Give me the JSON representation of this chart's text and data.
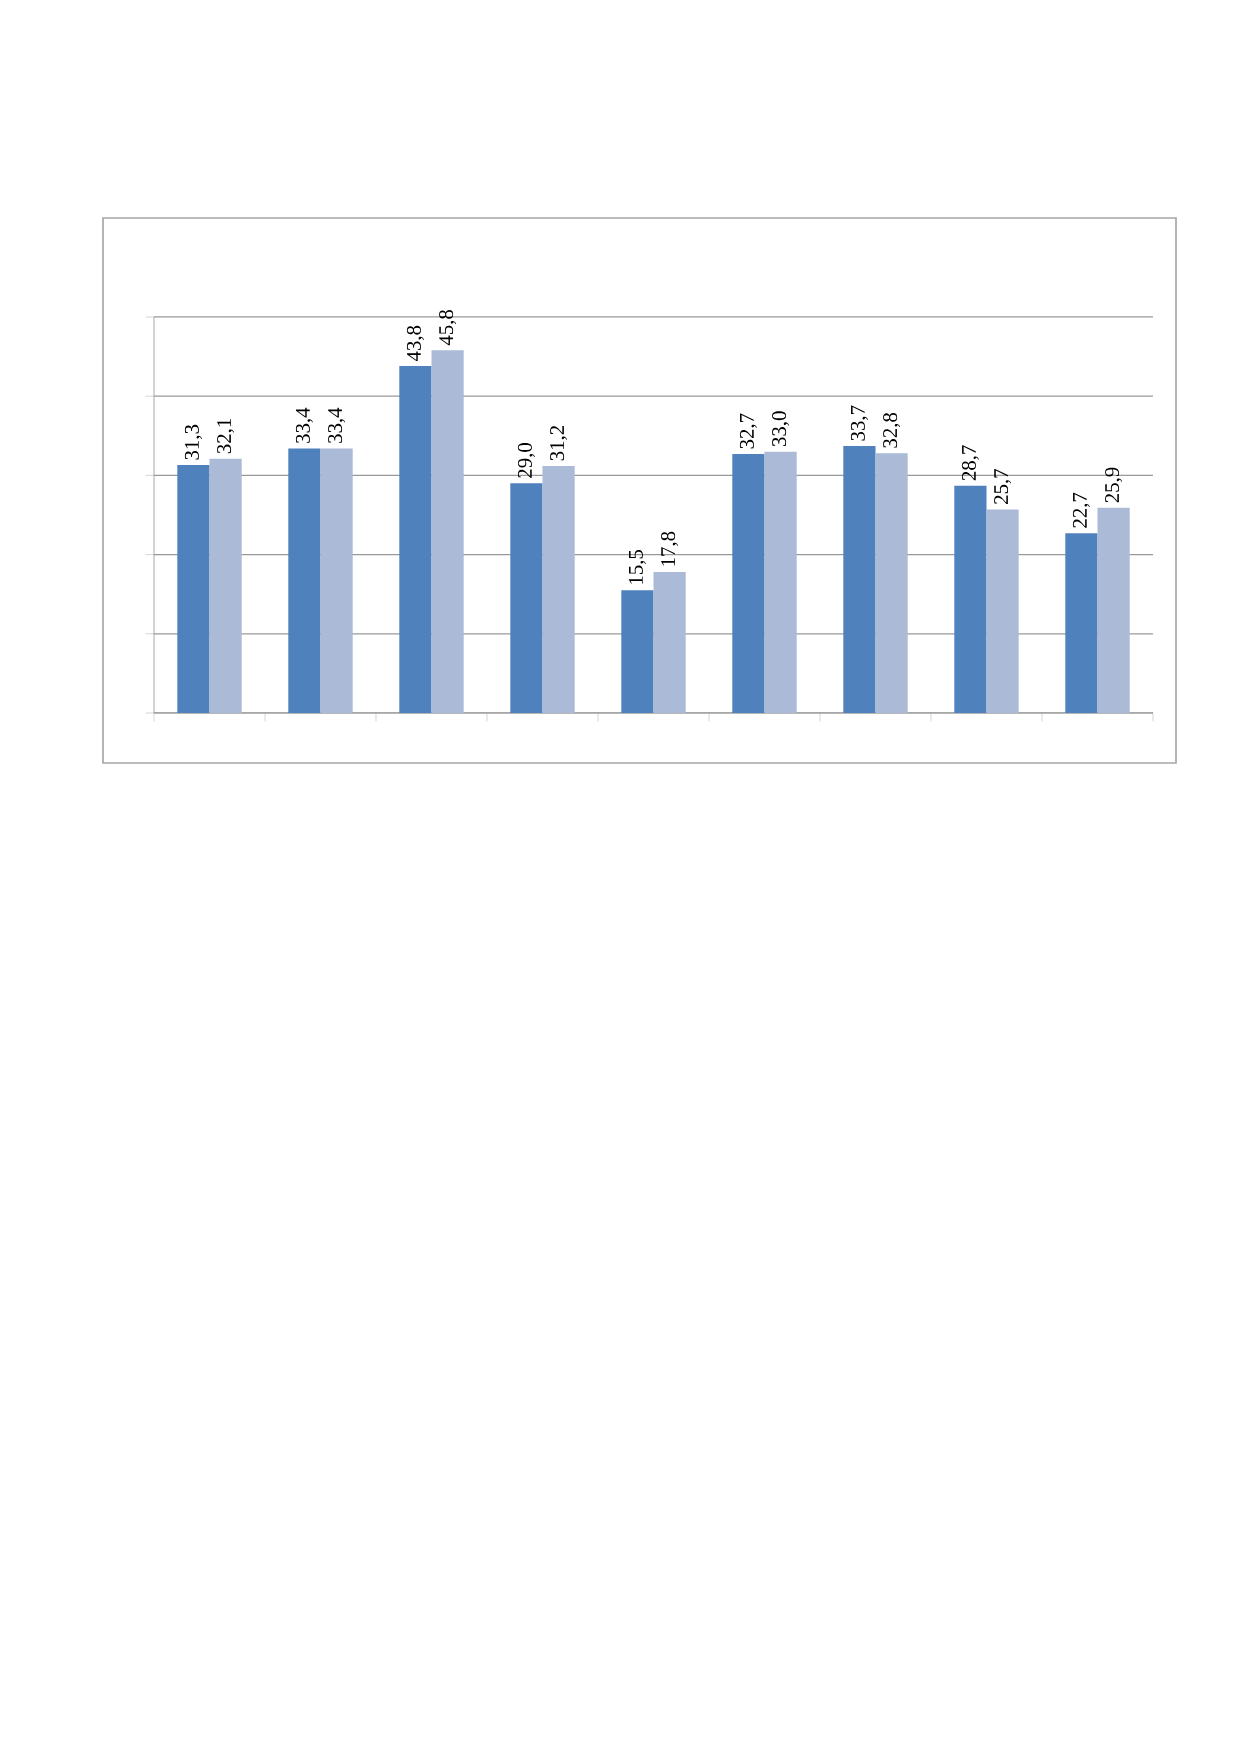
{
  "chart_data": {
    "type": "bar",
    "categories": [
      null,
      null,
      null,
      null,
      null,
      null,
      null,
      null,
      null
    ],
    "series": [
      {
        "color": "#4f81bd",
        "values": [
          31.3,
          33.4,
          43.8,
          29.0,
          15.5,
          32.7,
          33.7,
          28.7,
          22.7
        ],
        "value_labels": [
          "31,3",
          "33,4",
          "43,8",
          "29,0",
          "15,5",
          "32,7",
          "33,7",
          "28,7",
          "22,7"
        ]
      },
      {
        "color": "#aabad7",
        "values": [
          32.1,
          33.4,
          45.8,
          31.2,
          17.8,
          33.0,
          32.8,
          25.7,
          25.9
        ],
        "value_labels": [
          "32,1",
          "33,4",
          "45,8",
          "31,2",
          "17,8",
          "33,0",
          "32,8",
          "25,7",
          "25,9"
        ]
      }
    ],
    "ylim": [
      0,
      50
    ],
    "yticks": [
      {
        "value": 0,
        "label": null
      },
      {
        "value": 10,
        "label": null
      },
      {
        "value": 20,
        "label": null
      },
      {
        "value": 30,
        "label": null
      },
      {
        "value": 40,
        "label": null
      },
      {
        "value": 50,
        "label": null
      }
    ],
    "grid": "y"
  }
}
